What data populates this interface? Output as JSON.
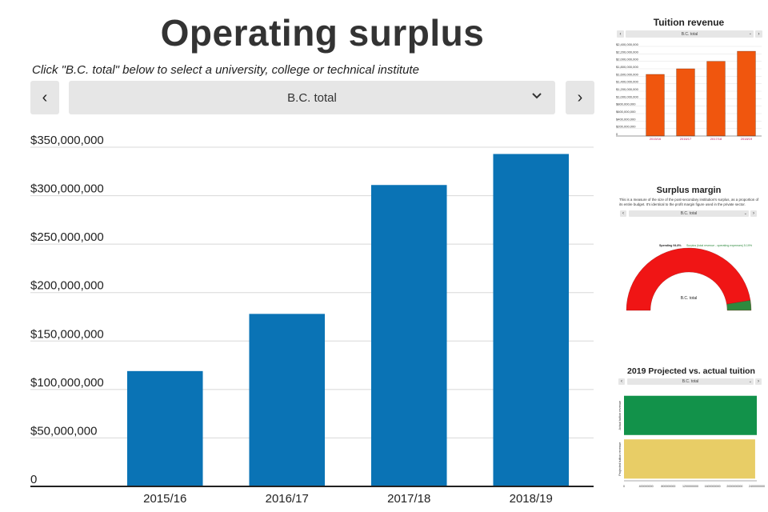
{
  "main": {
    "title": "Operating surplus",
    "instruction": "Click \"B.C. total\" below to select a university, college or technical institute",
    "select_value": "B.C. total",
    "prev_label": "‹",
    "next_label": "›"
  },
  "tuition": {
    "title": "Tuition revenue",
    "select_value": "B.C. total"
  },
  "margin": {
    "title": "Surplus margin",
    "description": "This is a measure of the size of the post-secondary institution's surplus, as a proportion of its entire budget. It's identical to the profit margin figure used in the private sector.",
    "select_value": "B.C. total",
    "legend_spending": "Spending 94.8%",
    "legend_surplus": "Surplus (total revenue - operating expenses) 5.19%",
    "gauge_label": "B.C. total"
  },
  "projected": {
    "title": "2019 Projected vs. actual tuition revenue",
    "select_value": "B.C. total"
  },
  "colors": {
    "main_bar": "#0a73b5",
    "tuition_bar": "#f0560e",
    "gauge_spending": "#f01515",
    "gauge_surplus": "#2e8a3e",
    "actual_bar": "#12924a",
    "projected_bar": "#e8cd66"
  },
  "chart_data": [
    {
      "type": "bar",
      "title": "Operating surplus",
      "categories": [
        "2015/16",
        "2016/17",
        "2017/18",
        "2018/19"
      ],
      "values": [
        119000000,
        178000000,
        311000000,
        343000000
      ],
      "ylim": [
        0,
        350000000
      ],
      "yticks": [
        0,
        50000000,
        100000000,
        150000000,
        200000000,
        250000000,
        300000000,
        350000000
      ],
      "ytick_labels": [
        "0",
        "$50,000,000",
        "$100,000,000",
        "$150,000,000",
        "$200,000,000",
        "$250,000,000",
        "$300,000,000",
        "$350,000,000"
      ],
      "grid": true
    },
    {
      "type": "bar",
      "title": "Tuition revenue",
      "categories": [
        "2015/16",
        "2016/17",
        "2017/18",
        "2018/19"
      ],
      "values": [
        1650000000,
        1800000000,
        2000000000,
        2270000000
      ],
      "ylim": [
        0,
        2400000000
      ],
      "yticks": [
        0,
        200000000,
        400000000,
        600000000,
        800000000,
        1000000000,
        1200000000,
        1400000000,
        1600000000,
        1800000000,
        2000000000,
        2200000000,
        2400000000
      ],
      "ytick_labels": [
        "0",
        "$200,000,000",
        "$400,000,000",
        "$600,000,000",
        "$800,000,000",
        "$1,000,000,000",
        "$1,200,000,000",
        "$1,400,000,000",
        "$1,600,000,000",
        "$1,800,000,000",
        "$2,000,000,000",
        "$2,200,000,000",
        "$2,400,000,000"
      ],
      "grid": true
    },
    {
      "type": "pie",
      "title": "Surplus margin",
      "categories": [
        "Spending",
        "Surplus (total revenue - operating expenses)"
      ],
      "values": [
        94.8,
        5.19
      ]
    },
    {
      "type": "bar",
      "title": "2019 Projected vs. actual tuition revenue",
      "orientation": "horizontal",
      "categories": [
        "Actual tuition revenue",
        "Projected tuition revenue"
      ],
      "values": [
        2400000000,
        2370000000
      ],
      "xlim": [
        0,
        2400000000
      ],
      "xticks": [
        0,
        400000000,
        800000000,
        1200000000,
        1600000000,
        2000000000,
        2400000000
      ],
      "xtick_labels": [
        "0",
        "400000000",
        "800000000",
        "1200000000",
        "1600000000",
        "2000000000",
        "2400000000"
      ]
    }
  ]
}
